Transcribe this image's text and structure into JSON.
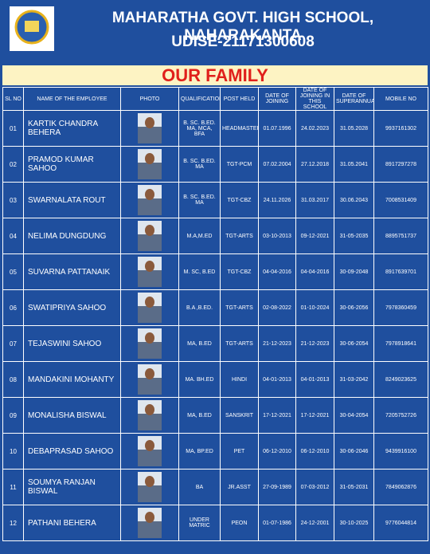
{
  "header": {
    "title": "MAHARATHA GOVT. HIGH SCHOOL, NAHARAKANTA",
    "udise": "UDISE-21171300608"
  },
  "banner": "OUR FAMILY",
  "table": {
    "columns": [
      "SL NO",
      "NAME OF THE EMPLOYEE",
      "PHOTO",
      "QUALIFICATION",
      "POST HELD",
      "DATE OF JOINING",
      "DATE OF JOINING IN THIS SCHOOL",
      "DATE OF SUPERANNUATION",
      "MOBILE NO"
    ],
    "rows": [
      [
        "01",
        "KARTIK CHANDRA BEHERA",
        "B. SC. B.ED. MA, MCA, BFA",
        "HEADMASTER",
        "01.07.1996",
        "24.02.2023",
        "31.05.2028",
        "9937161302"
      ],
      [
        "02",
        "PRAMOD KUMAR SAHOO",
        "B. SC. B.ED. MA",
        "TGT-PCM",
        "07.02.2004",
        "27.12.2018",
        "31.05.2041",
        "8917297278"
      ],
      [
        "03",
        "SWARNALATA ROUT",
        "B. SC. B.ED. MA",
        "TGT-CBZ",
        "24.11.2026",
        "31.03.2017",
        "30.06.2043",
        "7008531409"
      ],
      [
        "04",
        "NELIMA DUNGDUNG",
        "M.A,M.ED",
        "TGT-ARTS",
        "03-10-2013",
        "09-12-2021",
        "31-05-2035",
        "8895751737"
      ],
      [
        "05",
        "SUVARNA PATTANAIK",
        "M. SC, B.ED",
        "TGT-CBZ",
        "04-04-2016",
        "04-04-2016",
        "30-09-2048",
        "8917639701"
      ],
      [
        "06",
        "SWATIPRIYA SAHOO",
        "B.A ,B.ED.",
        "TGT-ARTS",
        "02-08-2022",
        "01-10-2024",
        "30-06-2056",
        "7978360459"
      ],
      [
        "07",
        "TEJASWINI SAHOO",
        "MA, B.ED",
        "TGT-ARTS",
        "21-12-2023",
        "21-12-2023",
        "30-06-2054",
        "7978918641"
      ],
      [
        "08",
        "MANDAKINI MOHANTY",
        "MA. BH.ED",
        "HINDI",
        "04-01-2013",
        "04-01-2013",
        "31-03-2042",
        "8249023625"
      ],
      [
        "09",
        "MONALISHA BISWAL",
        "MA, B.ED",
        "SANSKRIT",
        "17-12-2021",
        "17-12-2021",
        "30-04-2054",
        "7205752726"
      ],
      [
        "10",
        "DEBAPRASAD SAHOO",
        "MA, BP.ED",
        "PET",
        "06-12-2010",
        "06-12-2010",
        "30-06-2046",
        "9439916100"
      ],
      [
        "11",
        "SOUMYA RANJAN BISWAL",
        "BA",
        "JR.ASST",
        "27-09-1989",
        "07-03-2012",
        "31-05-2031",
        "7849062876"
      ],
      [
        "12",
        "PATHANI BEHERA",
        "UNDER MATRIC",
        "PEON",
        "01-07-1986",
        "24-12-2001",
        "30-10-2025",
        "9776044814"
      ]
    ]
  }
}
